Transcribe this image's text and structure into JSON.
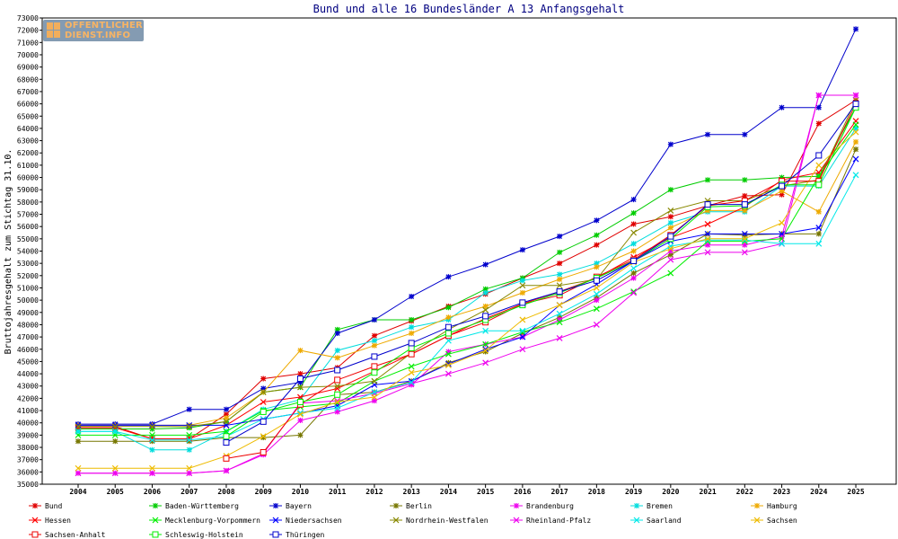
{
  "logo": {
    "line1": "OFFENTLICHER",
    "line2": "DIENST.INFO"
  },
  "chart_data": {
    "type": "line",
    "title": "Bund und alle 16 Bundesländer A 13 Anfangsgehalt",
    "xlabel": "",
    "ylabel": "Bruttojahresgehalt zum Stichtag 31.10.",
    "ylim": [
      35000,
      73000
    ],
    "ytick_step": 1000,
    "grid": false,
    "legend_position": "bottom",
    "categories": [
      "2004",
      "2005",
      "2006",
      "2007",
      "2008",
      "2009",
      "2010",
      "2011",
      "2012",
      "2013",
      "2014",
      "2015",
      "2016",
      "2017",
      "2018",
      "2019",
      "2020",
      "2021",
      "2022",
      "2023",
      "2024",
      "2025"
    ],
    "series": [
      {
        "name": "Bund",
        "color": "#e00000",
        "marker": "star",
        "values": [
          39700,
          39700,
          38700,
          38700,
          40700,
          43600,
          44000,
          44500,
          47100,
          48300,
          49500,
          50500,
          51800,
          53000,
          54500,
          56200,
          56800,
          57700,
          58500,
          58600,
          64400,
          66300
        ]
      },
      {
        "name": "Baden-Württemberg",
        "color": "#00cc00",
        "marker": "star",
        "values": [
          39500,
          39500,
          39500,
          39600,
          40100,
          42500,
          42900,
          47600,
          48400,
          48400,
          49400,
          50900,
          51800,
          53900,
          55300,
          57100,
          59000,
          59800,
          59800,
          60000,
          60100,
          65700
        ]
      },
      {
        "name": "Bayern",
        "color": "#0000cc",
        "marker": "star",
        "values": [
          39900,
          39900,
          39900,
          41100,
          41100,
          42800,
          43300,
          47300,
          48400,
          50300,
          51900,
          52900,
          54100,
          55200,
          56500,
          58200,
          62700,
          63500,
          63500,
          65700,
          65700,
          72100
        ]
      },
      {
        "name": "Berlin",
        "color": "#777700",
        "marker": "star",
        "values": [
          38500,
          38500,
          38500,
          38500,
          38800,
          38800,
          39000,
          42300,
          42500,
          43400,
          44900,
          45800,
          47300,
          48600,
          50200,
          52200,
          53700,
          55400,
          55300,
          55400,
          55400,
          62300
        ]
      },
      {
        "name": "Brandenburg",
        "color": "#ee00ee",
        "marker": "star",
        "values": [
          35900,
          35900,
          35900,
          35900,
          36100,
          37400,
          40200,
          40900,
          41800,
          43100,
          45800,
          46400,
          47000,
          48400,
          50000,
          51800,
          54000,
          54500,
          54500,
          55200,
          66700,
          66700
        ]
      },
      {
        "name": "Bremen",
        "color": "#00dddd",
        "marker": "star",
        "values": [
          39300,
          39300,
          37800,
          37800,
          39300,
          41100,
          41900,
          45900,
          46700,
          47800,
          48400,
          50600,
          51600,
          52100,
          53000,
          54600,
          56300,
          57200,
          57200,
          59300,
          59300,
          64000
        ]
      },
      {
        "name": "Hamburg",
        "color": "#eeaa00",
        "marker": "star",
        "values": [
          39800,
          39800,
          39800,
          39800,
          40400,
          42500,
          45900,
          45300,
          46300,
          47300,
          48600,
          49500,
          50600,
          51700,
          52700,
          54000,
          55900,
          57300,
          57300,
          58900,
          57200,
          62900
        ]
      },
      {
        "name": "Hessen",
        "color": "#ff0000",
        "marker": "cross",
        "values": [
          39600,
          39600,
          38700,
          38700,
          39800,
          41700,
          42100,
          42800,
          44200,
          45600,
          47100,
          48500,
          49700,
          50700,
          51800,
          53500,
          55100,
          56200,
          57600,
          59800,
          60400,
          64600
        ]
      },
      {
        "name": "Mecklenburg-Vorpommern",
        "color": "#00ee00",
        "marker": "cross",
        "values": [
          39000,
          39000,
          39000,
          39000,
          39300,
          41000,
          41300,
          41600,
          43400,
          44600,
          45600,
          46400,
          47400,
          48200,
          49300,
          50700,
          52200,
          54800,
          54800,
          55000,
          60100,
          64300
        ]
      },
      {
        "name": "Niedersachsen",
        "color": "#0000ff",
        "marker": "cross",
        "values": [
          39800,
          39800,
          39800,
          39800,
          39800,
          40300,
          40800,
          41400,
          43100,
          43400,
          44800,
          46000,
          47000,
          49600,
          51300,
          53200,
          54800,
          55400,
          55400,
          55400,
          55900,
          61500
        ]
      },
      {
        "name": "Nordrhein-Westfalen",
        "color": "#888800",
        "marker": "cross",
        "values": [
          39700,
          39700,
          39700,
          39700,
          40100,
          42500,
          42900,
          43000,
          43400,
          45700,
          47600,
          49200,
          51200,
          51200,
          51700,
          55500,
          57300,
          58100,
          58100,
          59300,
          59800,
          66300
        ]
      },
      {
        "name": "Rheinland-Pfalz",
        "color": "#ee00ee",
        "marker": "cross",
        "values": [
          35900,
          35900,
          35900,
          35900,
          36100,
          37500,
          41600,
          41800,
          42400,
          43200,
          44000,
          44900,
          46000,
          46900,
          48000,
          50600,
          53300,
          53900,
          53900,
          54600,
          66700,
          66700
        ]
      },
      {
        "name": "Saarland",
        "color": "#00e8e8",
        "marker": "cross",
        "values": [
          39300,
          39300,
          38600,
          38600,
          38900,
          40300,
          40800,
          41200,
          42500,
          43300,
          46700,
          47500,
          47500,
          48900,
          50500,
          52600,
          54400,
          54900,
          54900,
          54600,
          54600,
          60200
        ]
      },
      {
        "name": "Sachsen",
        "color": "#eebb00",
        "marker": "cross",
        "values": [
          36300,
          36300,
          36300,
          36300,
          37300,
          38900,
          40700,
          41700,
          42100,
          44100,
          44700,
          45900,
          48400,
          49600,
          51000,
          53100,
          54200,
          55000,
          55000,
          56300,
          61000,
          63700
        ]
      },
      {
        "name": "Sachsen-Anhalt",
        "color": "#ee0000",
        "marker": "square",
        "values": [
          null,
          null,
          null,
          null,
          37100,
          37600,
          41500,
          43500,
          44600,
          45600,
          47100,
          48200,
          49700,
          50400,
          51900,
          53300,
          55300,
          57700,
          58100,
          59700,
          59700,
          66000
        ]
      },
      {
        "name": "Schleswig-Holstein",
        "color": "#00ee00",
        "marker": "square",
        "values": [
          null,
          null,
          null,
          null,
          38900,
          40900,
          41700,
          42300,
          44100,
          46100,
          47300,
          48400,
          49600,
          50600,
          51800,
          53200,
          55000,
          57600,
          57700,
          59400,
          59400,
          65700
        ]
      },
      {
        "name": "Thüringen",
        "color": "#0000cc",
        "marker": "square",
        "values": [
          null,
          null,
          null,
          null,
          38400,
          40100,
          43600,
          44300,
          45400,
          46500,
          47800,
          48700,
          49800,
          50700,
          51600,
          53200,
          55200,
          57800,
          57800,
          59300,
          61800,
          66000
        ]
      }
    ]
  }
}
